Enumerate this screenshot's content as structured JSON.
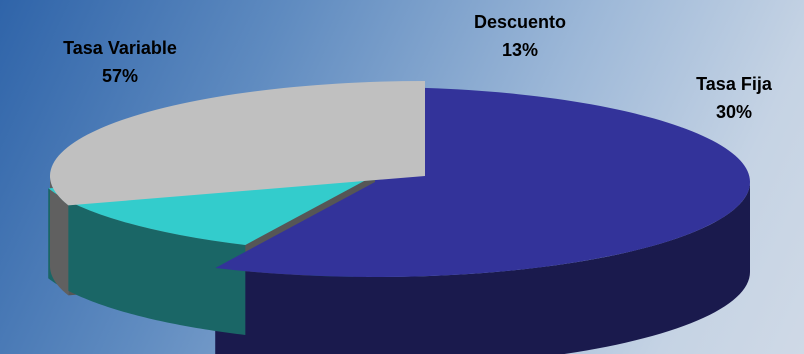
{
  "chart_data": {
    "type": "pie",
    "categories": [
      "Tasa Variable",
      "Descuento",
      "Tasa Fija"
    ],
    "values": [
      57,
      13,
      30
    ],
    "value_labels": [
      "57%",
      "13%",
      "30%"
    ],
    "colors": {
      "Tasa Variable": "#33339a",
      "Descuento": "#33cccc",
      "Tasa Fija": "#c0c0c0"
    },
    "style": "3d-exploded",
    "legend": "none"
  }
}
